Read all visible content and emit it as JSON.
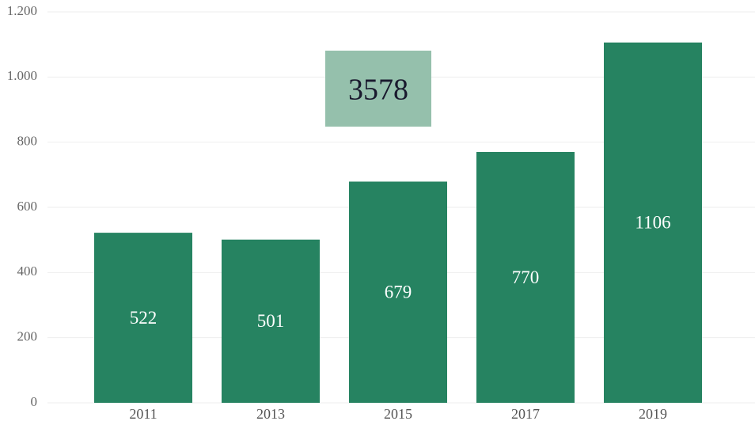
{
  "chart_data": {
    "type": "bar",
    "categories": [
      "2011",
      "2013",
      "2015",
      "2017",
      "2019"
    ],
    "values": [
      522,
      501,
      679,
      770,
      1106
    ],
    "color": "#268361",
    "ylim": [
      0,
      1200
    ],
    "yticks": [
      0,
      200,
      400,
      600,
      800,
      {
        "value": 1000,
        "label": "1.000"
      },
      {
        "value": 1200,
        "label": "1.200"
      }
    ],
    "grid": true,
    "annotation": "3578"
  }
}
